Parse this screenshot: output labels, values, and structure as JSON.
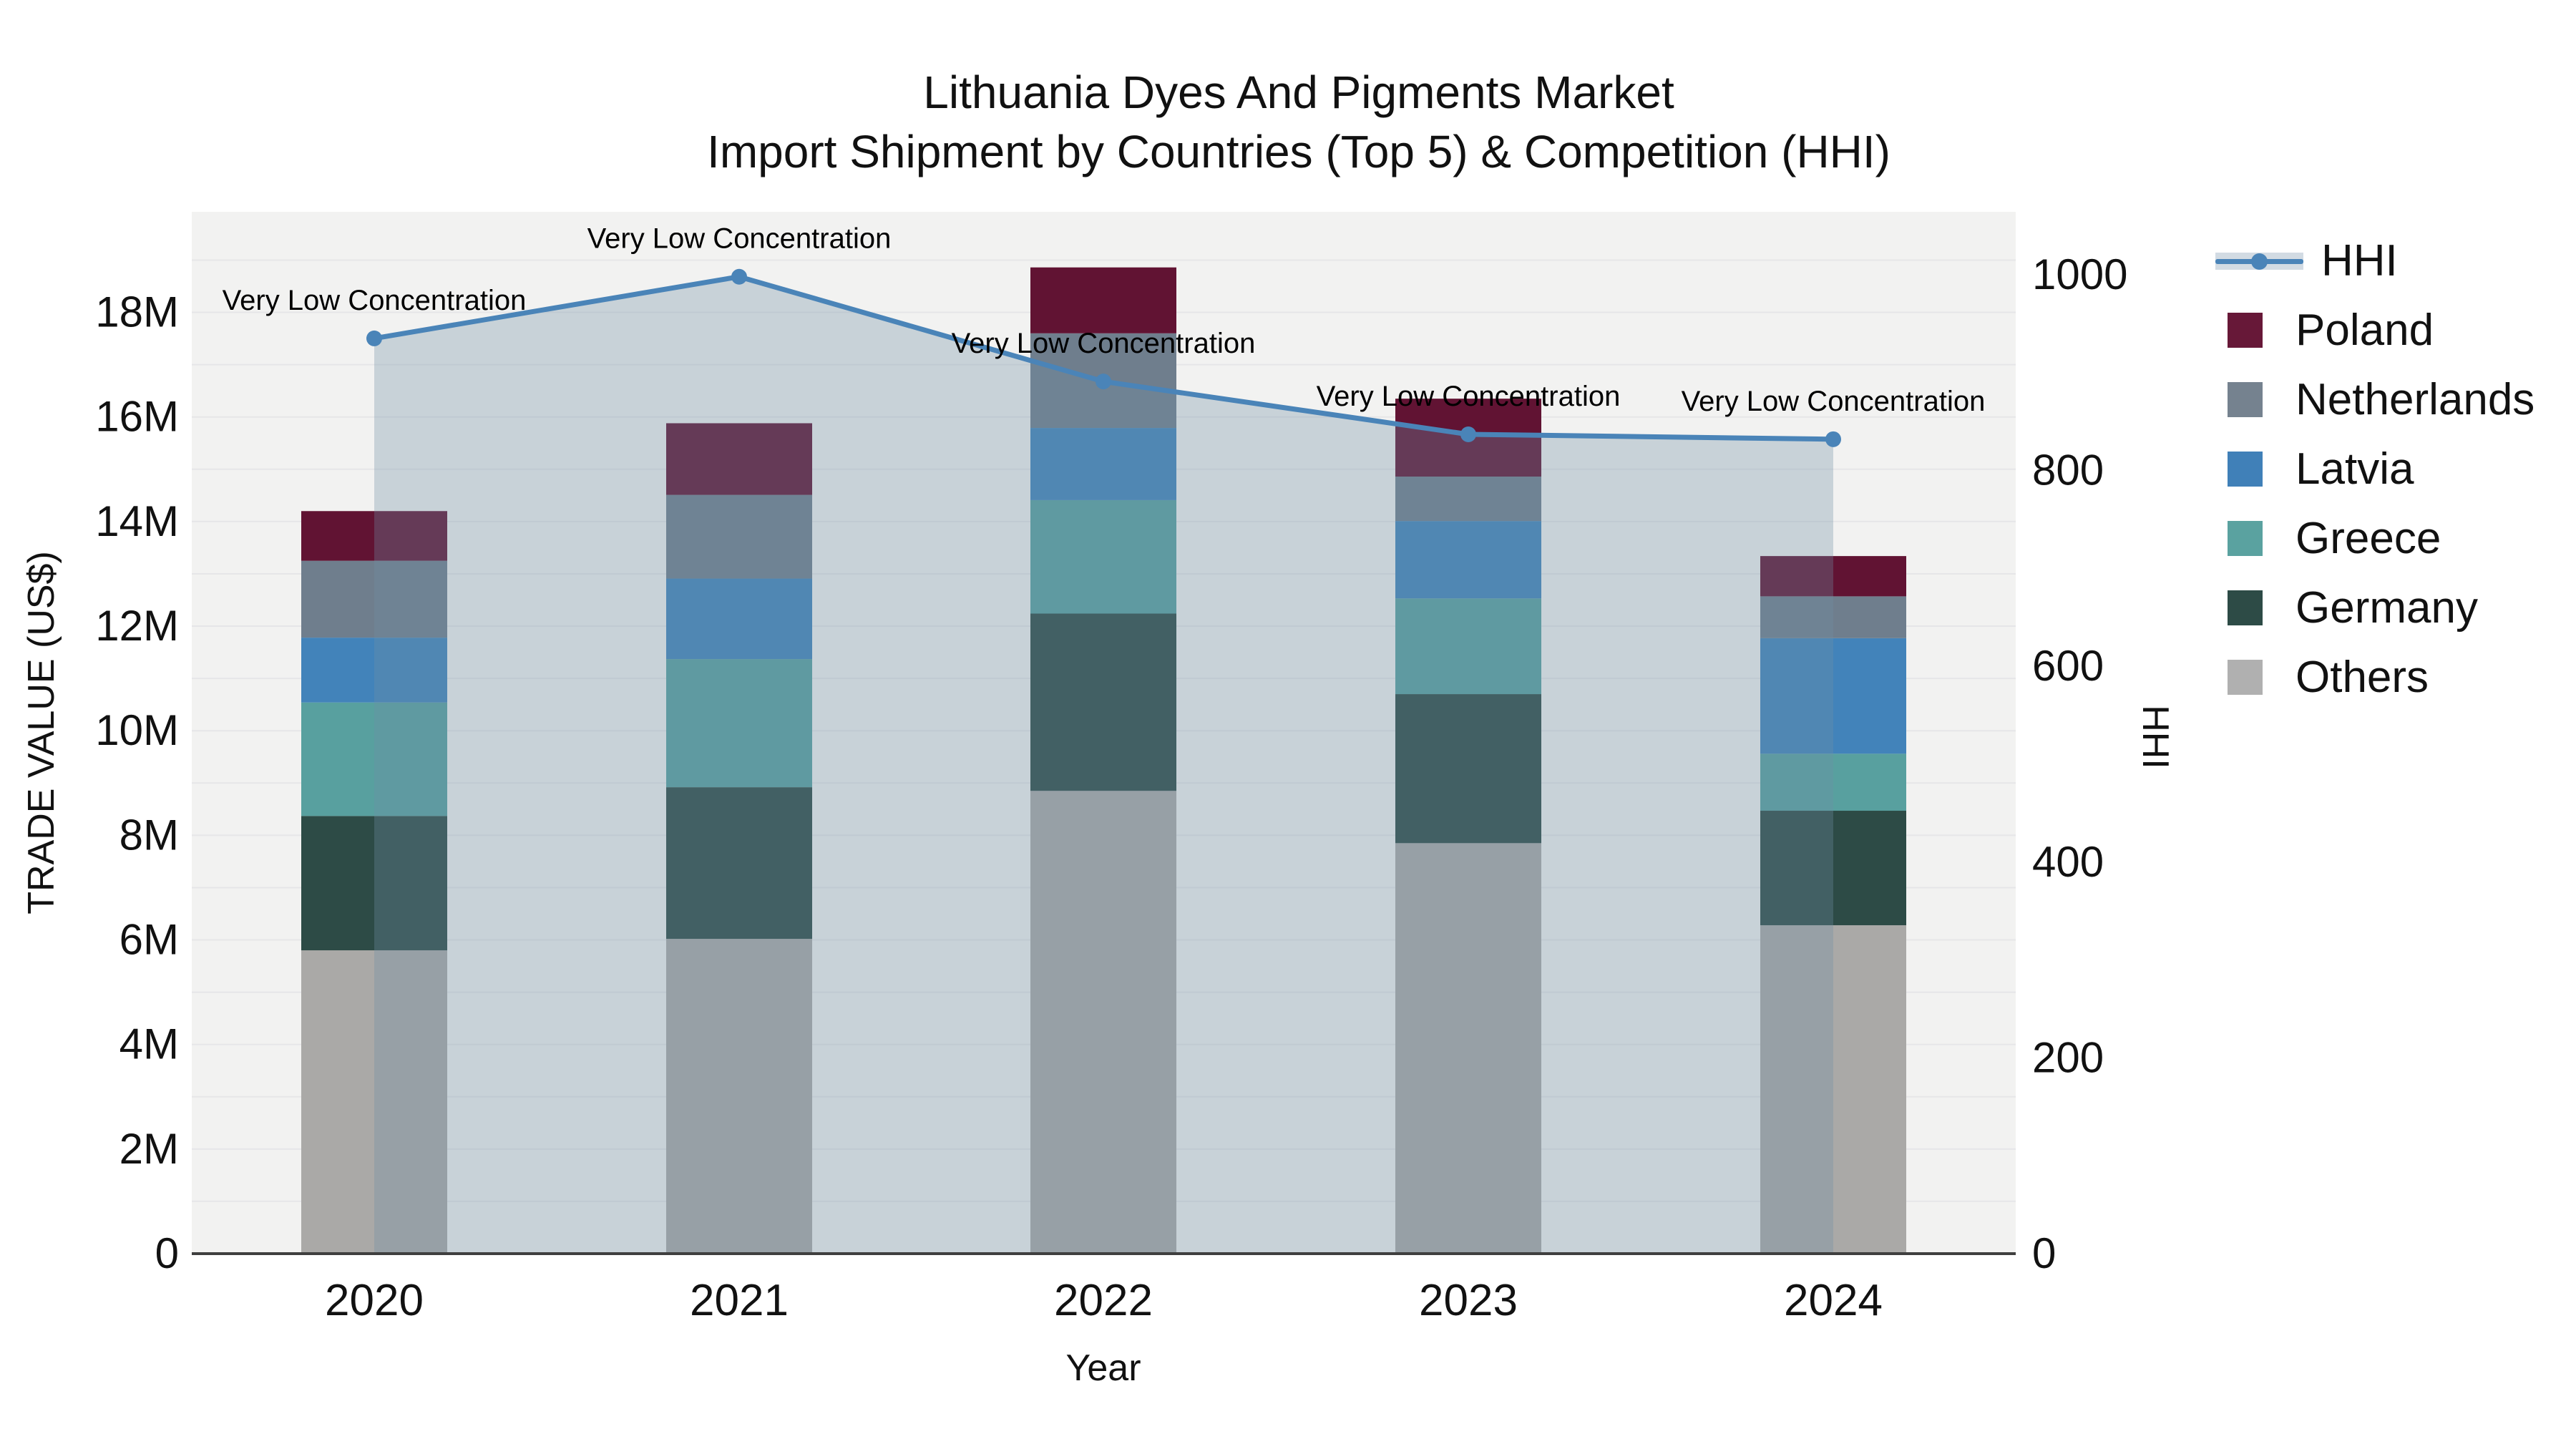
{
  "title": {
    "line1": "Lithuania Dyes And Pigments Market",
    "line2": "Import Shipment by Countries (Top 5) & Competition (HHI)"
  },
  "axes": {
    "x": {
      "title": "Year",
      "ticks": [
        "2020",
        "2021",
        "2022",
        "2023",
        "2024"
      ]
    },
    "y": {
      "title": "TRADE VALUE (US$)",
      "ticks": [
        "0",
        "2M",
        "4M",
        "6M",
        "8M",
        "10M",
        "12M",
        "14M",
        "16M",
        "18M"
      ],
      "range_millions": [
        0,
        19.9
      ]
    },
    "y2": {
      "title": "HHI",
      "ticks": [
        "0",
        "200",
        "400",
        "600",
        "800",
        "1000"
      ],
      "range": [
        0,
        1000
      ]
    }
  },
  "legend": [
    {
      "label": "HHI",
      "type": "line",
      "color": "#4a84b8"
    },
    {
      "label": "Poland",
      "type": "swatch",
      "color": "#671838"
    },
    {
      "label": "Netherlands",
      "type": "swatch",
      "color": "#75828f"
    },
    {
      "label": "Latvia",
      "type": "swatch",
      "color": "#4080b8"
    },
    {
      "label": "Greece",
      "type": "swatch",
      "color": "#5aa2a0"
    },
    {
      "label": "Germany",
      "type": "swatch",
      "color": "#2d4b46"
    },
    {
      "label": "Others",
      "type": "swatch",
      "color": "#b0b0b0"
    }
  ],
  "chart_data": {
    "type": "bar",
    "subtype": "stacked-with-line-overlay",
    "categories": [
      "2020",
      "2021",
      "2022",
      "2023",
      "2024"
    ],
    "series": [
      {
        "name": "Others",
        "axis": "y",
        "color": "#aaa9a7",
        "values_millions": [
          5.8,
          6.02,
          8.85,
          7.85,
          6.28
        ]
      },
      {
        "name": "Germany",
        "axis": "y",
        "color": "#2d4b46",
        "values_millions": [
          2.57,
          2.9,
          3.39,
          2.85,
          2.19
        ]
      },
      {
        "name": "Greece",
        "axis": "y",
        "color": "#58a09f",
        "values_millions": [
          2.17,
          2.45,
          2.17,
          1.83,
          1.09
        ]
      },
      {
        "name": "Latvia",
        "axis": "y",
        "color": "#4283ba",
        "values_millions": [
          1.24,
          1.54,
          1.38,
          1.48,
          2.21
        ]
      },
      {
        "name": "Netherlands",
        "axis": "y",
        "color": "#6f7e8d",
        "values_millions": [
          1.47,
          1.6,
          1.81,
          0.85,
          0.8
        ]
      },
      {
        "name": "Poland",
        "axis": "y",
        "color": "#611333",
        "values_millions": [
          0.95,
          1.37,
          1.26,
          1.49,
          0.77
        ]
      }
    ],
    "line_series": {
      "name": "HHI",
      "axis": "y2",
      "color": "#4a84b8",
      "fill_color_rgba": "rgba(113,143,166,0.32)",
      "values": [
        935,
        998,
        891,
        837,
        832
      ]
    },
    "totals_millions": [
      14.2,
      15.88,
      18.86,
      16.35,
      13.34
    ],
    "annotations": [
      {
        "x": "2020",
        "text": "Very Low Concentration"
      },
      {
        "x": "2021",
        "text": "Very Low Concentration"
      },
      {
        "x": "2022",
        "text": "Very Low Concentration"
      },
      {
        "x": "2023",
        "text": "Very Low Concentration"
      },
      {
        "x": "2024",
        "text": "Very Low Concentration"
      }
    ],
    "title": "Lithuania Dyes And Pigments Market — Import Shipment by Countries (Top 5) & Competition (HHI)",
    "xlabel": "Year",
    "ylabel": "TRADE VALUE (US$)",
    "y2label": "HHI",
    "grid": true,
    "legend_position": "right",
    "colors": {
      "plot_background": "#f2f2f1",
      "gridline": "#e6e6e8",
      "axis_line": "#3f3f3f",
      "text": "#111111"
    }
  }
}
